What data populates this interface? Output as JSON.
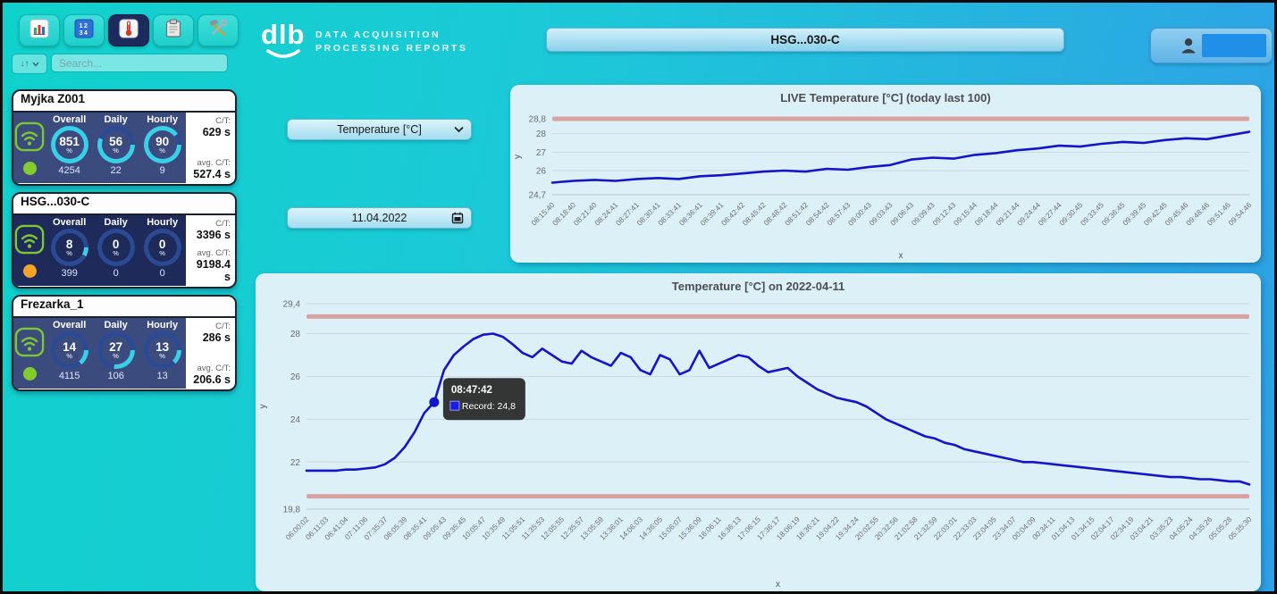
{
  "brand": {
    "logo": "dlb",
    "tagline_line1": "DATA ACQUISITION",
    "tagline_line2": "PROCESSING REPORTS"
  },
  "header": {
    "machine_title": "HSG...030-C"
  },
  "toolbar": {
    "sort_glyph": "↓↑",
    "search_placeholder": "Search...",
    "buttons": [
      {
        "icon": "bar-chart",
        "active": false
      },
      {
        "icon": "number-pad",
        "active": false
      },
      {
        "icon": "thermometer",
        "active": true
      },
      {
        "icon": "clipboard",
        "active": false
      },
      {
        "icon": "tools",
        "active": false
      }
    ]
  },
  "sidebar": {
    "gauge_headers": [
      "Overall",
      "Daily",
      "Hourly"
    ],
    "machines": [
      {
        "name": "Myjka Z001",
        "body_color": "#3c4b7e",
        "ring_track": "#2b4a94",
        "ring_fill": "#38cfe9",
        "status_color": "#84cc2e",
        "gauges": [
          {
            "label": "Overall",
            "pct": 851,
            "total": "4254"
          },
          {
            "label": "Daily",
            "pct": 56,
            "total": "22"
          },
          {
            "label": "Hourly",
            "pct": 90,
            "total": "9"
          }
        ],
        "ct_label": "C/T:",
        "ct_value": "629 s",
        "avg_label": "avg. C/T:",
        "avg_value": "527.4 s"
      },
      {
        "name": "HSG...030-C",
        "body_color": "#1e2a5a",
        "ring_track": "#2b4a94",
        "ring_fill": "#38cfe9",
        "status_color": "#f2a32a",
        "gauges": [
          {
            "label": "Overall",
            "pct": 8,
            "total": "399"
          },
          {
            "label": "Daily",
            "pct": 0,
            "total": "0"
          },
          {
            "label": "Hourly",
            "pct": 0,
            "total": "0"
          }
        ],
        "ct_label": "C/T:",
        "ct_value": "3396 s",
        "avg_label": "avg. C/T:",
        "avg_value": "9198.4 s"
      },
      {
        "name": "Frezarka_1",
        "body_color": "#3c4b7e",
        "ring_track": "#2b4a94",
        "ring_fill": "#38cfe9",
        "status_color": "#84cc2e",
        "gauges": [
          {
            "label": "Overall",
            "pct": 14,
            "total": "4115"
          },
          {
            "label": "Daily",
            "pct": 27,
            "total": "106"
          },
          {
            "label": "Hourly",
            "pct": 13,
            "total": "13"
          }
        ],
        "ct_label": "C/T:",
        "ct_value": "286 s",
        "avg_label": "avg. C/T:",
        "avg_value": "206.6 s"
      }
    ]
  },
  "controls": {
    "metric_selected": "Temperature [°C]",
    "date_value": "11.04.2022"
  },
  "chart_data": [
    {
      "type": "line",
      "title": "LIVE Temperature [°C] (today last 100)",
      "xlabel": "x",
      "ylabel": "y",
      "ylim": [
        24.7,
        28.8
      ],
      "yticks": [
        {
          "v": 28.8,
          "label": "28,8"
        },
        {
          "v": 28,
          "label": "28"
        },
        {
          "v": 27,
          "label": "27"
        },
        {
          "v": 26,
          "label": "26"
        },
        {
          "v": 24.7,
          "label": "24,7"
        }
      ],
      "limit_lines": [
        28.8
      ],
      "limit_color": "#d9a2a2",
      "line_color": "#1414c8",
      "points_per_label": 1,
      "x_tick_labels": [
        "08:15:40",
        "08:18:40",
        "08:21:40",
        "08:24:41",
        "08:27:41",
        "08:30:41",
        "08:33:41",
        "08:36:41",
        "08:39:41",
        "08:42:42",
        "08:45:42",
        "08:48:42",
        "08:51:42",
        "08:54:42",
        "08:57:43",
        "09:00:43",
        "09:03:43",
        "09:06:43",
        "09:09:43",
        "09:12:43",
        "09:15:44",
        "09:18:44",
        "09:21:44",
        "09:24:44",
        "09:27:44",
        "09:30:45",
        "09:33:45",
        "09:36:45",
        "09:39:45",
        "09:42:45",
        "09:45:46",
        "09:48:46",
        "09:51:46",
        "09:54:46"
      ],
      "values": [
        25.35,
        25.45,
        25.5,
        25.45,
        25.55,
        25.6,
        25.55,
        25.7,
        25.75,
        25.85,
        25.95,
        26.0,
        25.95,
        26.1,
        26.05,
        26.2,
        26.3,
        26.6,
        26.7,
        26.65,
        26.85,
        26.95,
        27.1,
        27.2,
        27.35,
        27.3,
        27.45,
        27.55,
        27.5,
        27.65,
        27.75,
        27.7,
        27.9,
        28.1
      ]
    },
    {
      "type": "line",
      "title": "Temperature [°C] on 2022-04-11",
      "xlabel": "x",
      "ylabel": "y",
      "ylim": [
        19.8,
        29.4
      ],
      "yticks": [
        {
          "v": 29.4,
          "label": "29,4"
        },
        {
          "v": 28,
          "label": "28"
        },
        {
          "v": 26,
          "label": "26"
        },
        {
          "v": 24,
          "label": "24"
        },
        {
          "v": 22,
          "label": "22"
        },
        {
          "v": 19.8,
          "label": "19,8"
        }
      ],
      "limit_lines": [
        28.8,
        20.4
      ],
      "limit_color": "#d9a2a2",
      "line_color": "#1414c8",
      "points_per_label": 2,
      "x_tick_labels": [
        "06:00:02",
        "06:11:03",
        "06:41:04",
        "07:11:06",
        "07:35:37",
        "08:05:39",
        "08:35:41",
        "09:05:43",
        "09:35:45",
        "10:05:47",
        "10:35:49",
        "11:05:51",
        "11:35:53",
        "12:05:55",
        "12:35:57",
        "13:05:59",
        "13:36:01",
        "14:06:03",
        "14:36:05",
        "15:06:07",
        "15:36:09",
        "16:06:11",
        "16:36:13",
        "17:06:15",
        "17:36:17",
        "18:06:19",
        "18:36:21",
        "19:04:22",
        "19:34:24",
        "20:02:55",
        "20:32:56",
        "21:02:58",
        "21:32:59",
        "22:03:01",
        "22:33:03",
        "23:04:05",
        "23:34:07",
        "00:04:09",
        "00:34:11",
        "01:04:13",
        "01:34:15",
        "02:04:17",
        "02:34:19",
        "03:04:21",
        "03:35:23",
        "04:05:24",
        "04:35:26",
        "05:05:28",
        "05:35:30"
      ],
      "values": [
        21.6,
        21.6,
        21.6,
        21.6,
        21.65,
        21.65,
        21.7,
        21.75,
        21.9,
        22.2,
        22.7,
        23.4,
        24.3,
        24.8,
        26.3,
        27.0,
        27.4,
        27.75,
        27.95,
        28.0,
        27.85,
        27.5,
        27.1,
        26.9,
        27.3,
        27.0,
        26.7,
        26.6,
        27.2,
        26.9,
        26.7,
        26.5,
        27.1,
        26.9,
        26.3,
        26.1,
        27.0,
        26.8,
        26.1,
        26.3,
        27.2,
        26.4,
        26.6,
        26.8,
        27.0,
        26.9,
        26.5,
        26.2,
        26.3,
        26.4,
        26.0,
        25.7,
        25.4,
        25.2,
        25.0,
        24.9,
        24.8,
        24.6,
        24.3,
        24.0,
        23.8,
        23.6,
        23.4,
        23.2,
        23.1,
        22.9,
        22.8,
        22.6,
        22.5,
        22.4,
        22.3,
        22.2,
        22.1,
        22.0,
        22.0,
        21.95,
        21.9,
        21.85,
        21.8,
        21.75,
        21.7,
        21.65,
        21.6,
        21.55,
        21.5,
        21.45,
        21.4,
        21.35,
        21.3,
        21.3,
        21.25,
        21.2,
        21.2,
        21.15,
        21.1,
        21.1,
        20.95
      ],
      "marker": {
        "index": 13,
        "time": "08:47:42",
        "label": "Record",
        "value": "24,8"
      }
    }
  ]
}
